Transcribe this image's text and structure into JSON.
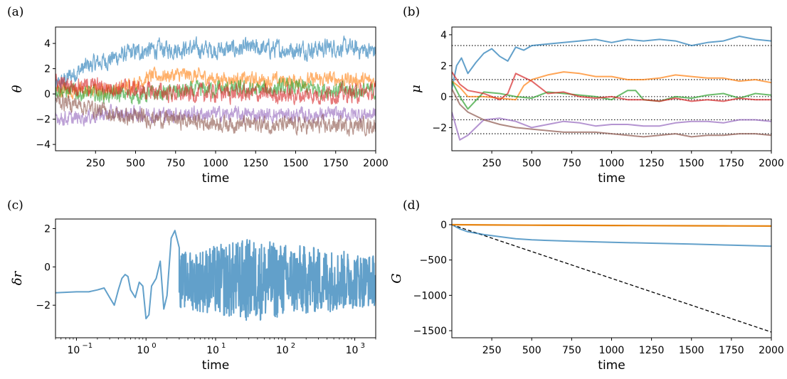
{
  "chart_data": [
    {
      "panel": "(a)",
      "type": "line",
      "xlabel": "time",
      "ylabel": "θ",
      "xlim": [
        0,
        2000
      ],
      "ylim": [
        -4.5,
        5.3
      ],
      "xticks": [
        250,
        500,
        750,
        1000,
        1250,
        1500,
        1750,
        2000
      ],
      "yticks": [
        -4,
        -2,
        0,
        2,
        4
      ],
      "ytick_labels": [
        "−4",
        "−2",
        "0",
        "2",
        "4"
      ],
      "grid": false,
      "series": [
        {
          "color": "#1f77b4",
          "x": [
            0,
            100,
            200,
            300,
            400,
            500,
            600,
            800,
            1000,
            1250,
            1500,
            1750,
            2000
          ],
          "y": [
            0.5,
            1.5,
            2.2,
            2.6,
            3.0,
            3.3,
            3.5,
            3.6,
            3.5,
            3.6,
            3.5,
            3.7,
            3.4
          ],
          "noise": 0.55
        },
        {
          "color": "#ff7f0e",
          "x": [
            0,
            200,
            400,
            600,
            800,
            1000,
            1250,
            1500,
            1750,
            2000
          ],
          "y": [
            0.3,
            0.2,
            0.4,
            1.4,
            1.5,
            1.2,
            1.1,
            1.0,
            1.2,
            1.0
          ],
          "noise": 0.45
        },
        {
          "color": "#2ca02c",
          "x": [
            0,
            200,
            500,
            800,
            1000,
            1250,
            1500,
            1750,
            2000
          ],
          "y": [
            0.4,
            0.0,
            -0.1,
            0.2,
            0.4,
            0.3,
            0.5,
            0.3,
            0.2
          ],
          "noise": 0.5
        },
        {
          "color": "#d62728",
          "x": [
            0,
            200,
            400,
            600,
            800,
            1000,
            1250,
            1500,
            1750,
            2000
          ],
          "y": [
            0.8,
            0.6,
            0.5,
            0.2,
            0.0,
            0.1,
            0.0,
            -0.1,
            0.0,
            0.1
          ],
          "noise": 0.55
        },
        {
          "color": "#9467bd",
          "x": [
            0,
            100,
            300,
            600,
            1000,
            1500,
            2000
          ],
          "y": [
            -1.8,
            -2.0,
            -1.6,
            -1.6,
            -1.6,
            -1.7,
            -1.6
          ],
          "noise": 0.45
        },
        {
          "color": "#8c564b",
          "x": [
            0,
            200,
            400,
            700,
            1000,
            1500,
            2000
          ],
          "y": [
            -0.5,
            -1.0,
            -1.8,
            -2.0,
            -2.3,
            -2.5,
            -2.5
          ],
          "noise": 0.5
        }
      ]
    },
    {
      "panel": "(b)",
      "type": "line",
      "xlabel": "time",
      "ylabel": "μ",
      "xlim": [
        0,
        2000
      ],
      "ylim": [
        -3.5,
        4.5
      ],
      "xticks": [
        250,
        500,
        750,
        1000,
        1250,
        1500,
        1750,
        2000
      ],
      "yticks": [
        -2,
        0,
        2,
        4
      ],
      "ytick_labels": [
        "−2",
        "0",
        "2",
        "4"
      ],
      "grid": false,
      "reference_lines": [
        3.3,
        1.1,
        0.0,
        -0.2,
        -1.5,
        -2.4
      ],
      "series": [
        {
          "color": "#1f77b4",
          "x": [
            0,
            30,
            60,
            100,
            150,
            200,
            250,
            300,
            350,
            400,
            450,
            500,
            600,
            700,
            800,
            900,
            1000,
            1100,
            1200,
            1300,
            1400,
            1500,
            1600,
            1700,
            1800,
            1900,
            2000
          ],
          "y": [
            0.5,
            2.0,
            2.5,
            1.5,
            2.2,
            2.8,
            3.1,
            2.6,
            2.3,
            3.2,
            3.0,
            3.3,
            3.4,
            3.5,
            3.6,
            3.7,
            3.5,
            3.7,
            3.6,
            3.7,
            3.6,
            3.3,
            3.5,
            3.6,
            3.9,
            3.7,
            3.6
          ]
        },
        {
          "color": "#ff7f0e",
          "x": [
            0,
            50,
            100,
            200,
            300,
            400,
            450,
            500,
            600,
            700,
            800,
            900,
            1000,
            1100,
            1200,
            1300,
            1400,
            1500,
            1600,
            1700,
            1800,
            1900,
            2000
          ],
          "y": [
            1.0,
            0.6,
            0.0,
            0.0,
            -0.1,
            -0.2,
            0.7,
            1.1,
            1.4,
            1.6,
            1.5,
            1.3,
            1.3,
            1.1,
            1.1,
            1.2,
            1.4,
            1.3,
            1.2,
            1.2,
            1.0,
            1.1,
            0.9
          ]
        },
        {
          "color": "#2ca02c",
          "x": [
            0,
            50,
            100,
            200,
            300,
            400,
            500,
            600,
            700,
            800,
            900,
            1000,
            1100,
            1150,
            1200,
            1300,
            1400,
            1500,
            1600,
            1700,
            1800,
            1900,
            2000
          ],
          "y": [
            1.0,
            0.0,
            -0.8,
            0.3,
            0.2,
            0.0,
            -0.1,
            0.3,
            0.2,
            0.1,
            0.0,
            -0.2,
            0.4,
            0.4,
            -0.2,
            -0.3,
            0.0,
            -0.1,
            0.1,
            0.2,
            -0.1,
            0.2,
            0.1
          ]
        },
        {
          "color": "#d62728",
          "x": [
            0,
            50,
            100,
            200,
            300,
            350,
            400,
            500,
            600,
            700,
            800,
            900,
            1000,
            1100,
            1200,
            1300,
            1400,
            1500,
            1600,
            1700,
            1800,
            1900,
            2000
          ],
          "y": [
            1.6,
            0.8,
            0.4,
            0.2,
            -0.2,
            0.2,
            1.5,
            1.0,
            0.2,
            0.3,
            0.0,
            -0.1,
            0.0,
            -0.2,
            -0.2,
            -0.3,
            -0.1,
            -0.3,
            -0.2,
            -0.3,
            -0.1,
            -0.2,
            -0.2
          ]
        },
        {
          "color": "#9467bd",
          "x": [
            0,
            50,
            100,
            150,
            200,
            300,
            400,
            500,
            600,
            700,
            800,
            900,
            1000,
            1100,
            1200,
            1300,
            1400,
            1500,
            1600,
            1700,
            1800,
            1900,
            2000
          ],
          "y": [
            -1.0,
            -2.8,
            -2.5,
            -2.0,
            -1.5,
            -1.4,
            -1.6,
            -2.0,
            -1.8,
            -1.6,
            -1.7,
            -1.9,
            -1.8,
            -1.8,
            -1.9,
            -1.9,
            -1.7,
            -1.6,
            -1.6,
            -1.7,
            -1.5,
            -1.5,
            -1.6
          ]
        },
        {
          "color": "#8c564b",
          "x": [
            0,
            50,
            100,
            200,
            300,
            400,
            500,
            600,
            700,
            800,
            900,
            1000,
            1100,
            1200,
            1300,
            1400,
            1500,
            1600,
            1700,
            1800,
            1900,
            2000
          ],
          "y": [
            0.5,
            -0.5,
            -1.0,
            -1.5,
            -1.8,
            -2.0,
            -2.1,
            -2.2,
            -2.3,
            -2.3,
            -2.3,
            -2.4,
            -2.5,
            -2.6,
            -2.5,
            -2.4,
            -2.6,
            -2.5,
            -2.5,
            -2.4,
            -2.4,
            -2.5
          ]
        }
      ]
    },
    {
      "panel": "(c)",
      "type": "line",
      "xlabel": "time",
      "ylabel": "δr",
      "xscale": "log",
      "xlim": [
        0.05,
        2000
      ],
      "ylim": [
        -3.7,
        2.5
      ],
      "xticks": [
        0.1,
        1,
        10,
        100,
        1000
      ],
      "xtick_labels": [
        {
          "base": "10",
          "exp": "−1"
        },
        {
          "base": "10",
          "exp": "0"
        },
        {
          "base": "10",
          "exp": "1"
        },
        {
          "base": "10",
          "exp": "2"
        },
        {
          "base": "10",
          "exp": "3"
        }
      ],
      "yticks": [
        -2,
        0,
        2
      ],
      "ytick_labels": [
        "−2",
        "0",
        "2"
      ],
      "grid": false,
      "series": [
        {
          "color": "#1f77b4",
          "x": [
            0.05,
            0.1,
            0.15,
            0.2,
            0.25,
            0.3,
            0.35,
            0.4,
            0.45,
            0.5,
            0.55,
            0.6,
            0.7,
            0.8,
            0.9,
            1.0,
            1.1,
            1.2,
            1.4,
            1.6,
            1.8,
            2.0,
            2.3,
            2.6,
            3.0
          ],
          "y": [
            -1.35,
            -1.3,
            -1.3,
            -1.2,
            -1.1,
            -1.6,
            -2.0,
            -1.2,
            -0.6,
            -0.4,
            -0.5,
            -1.2,
            -1.6,
            -0.8,
            -1.0,
            -2.7,
            -2.5,
            -1.0,
            -0.6,
            0.3,
            -2.2,
            -1.5,
            1.5,
            1.9,
            1.0
          ],
          "band_from": 3,
          "band_to": 2000,
          "band_center": -0.7,
          "band_amp": 1.9
        },
        {
          "note": "dense segment"
        }
      ]
    },
    {
      "panel": "(d)",
      "type": "line",
      "xlabel": "time",
      "ylabel": "G",
      "xlim": [
        0,
        2000
      ],
      "ylim": [
        -1600,
        80
      ],
      "xticks": [
        250,
        500,
        750,
        1000,
        1250,
        1500,
        1750,
        2000
      ],
      "yticks": [
        0,
        -500,
        -1000,
        -1500
      ],
      "ytick_labels": [
        "0",
        "−500",
        "−1000",
        "−1500"
      ],
      "grid": false,
      "series": [
        {
          "color": "#000000",
          "dashed": true,
          "x": [
            0,
            2000
          ],
          "y": [
            0,
            -1520
          ]
        },
        {
          "color": "#1f77b4",
          "x": [
            0,
            50,
            100,
            200,
            300,
            400,
            500,
            750,
            1000,
            1250,
            1500,
            1750,
            2000
          ],
          "y": [
            0,
            -60,
            -100,
            -140,
            -170,
            -200,
            -215,
            -235,
            -250,
            -262,
            -275,
            -290,
            -305
          ]
        },
        {
          "color": "#ff7f0e",
          "x": [
            0,
            250,
            500,
            750,
            1000,
            1250,
            1500,
            1750,
            2000
          ],
          "y": [
            0,
            -5,
            -8,
            -10,
            -12,
            -14,
            -16,
            -18,
            -20
          ]
        }
      ]
    }
  ]
}
